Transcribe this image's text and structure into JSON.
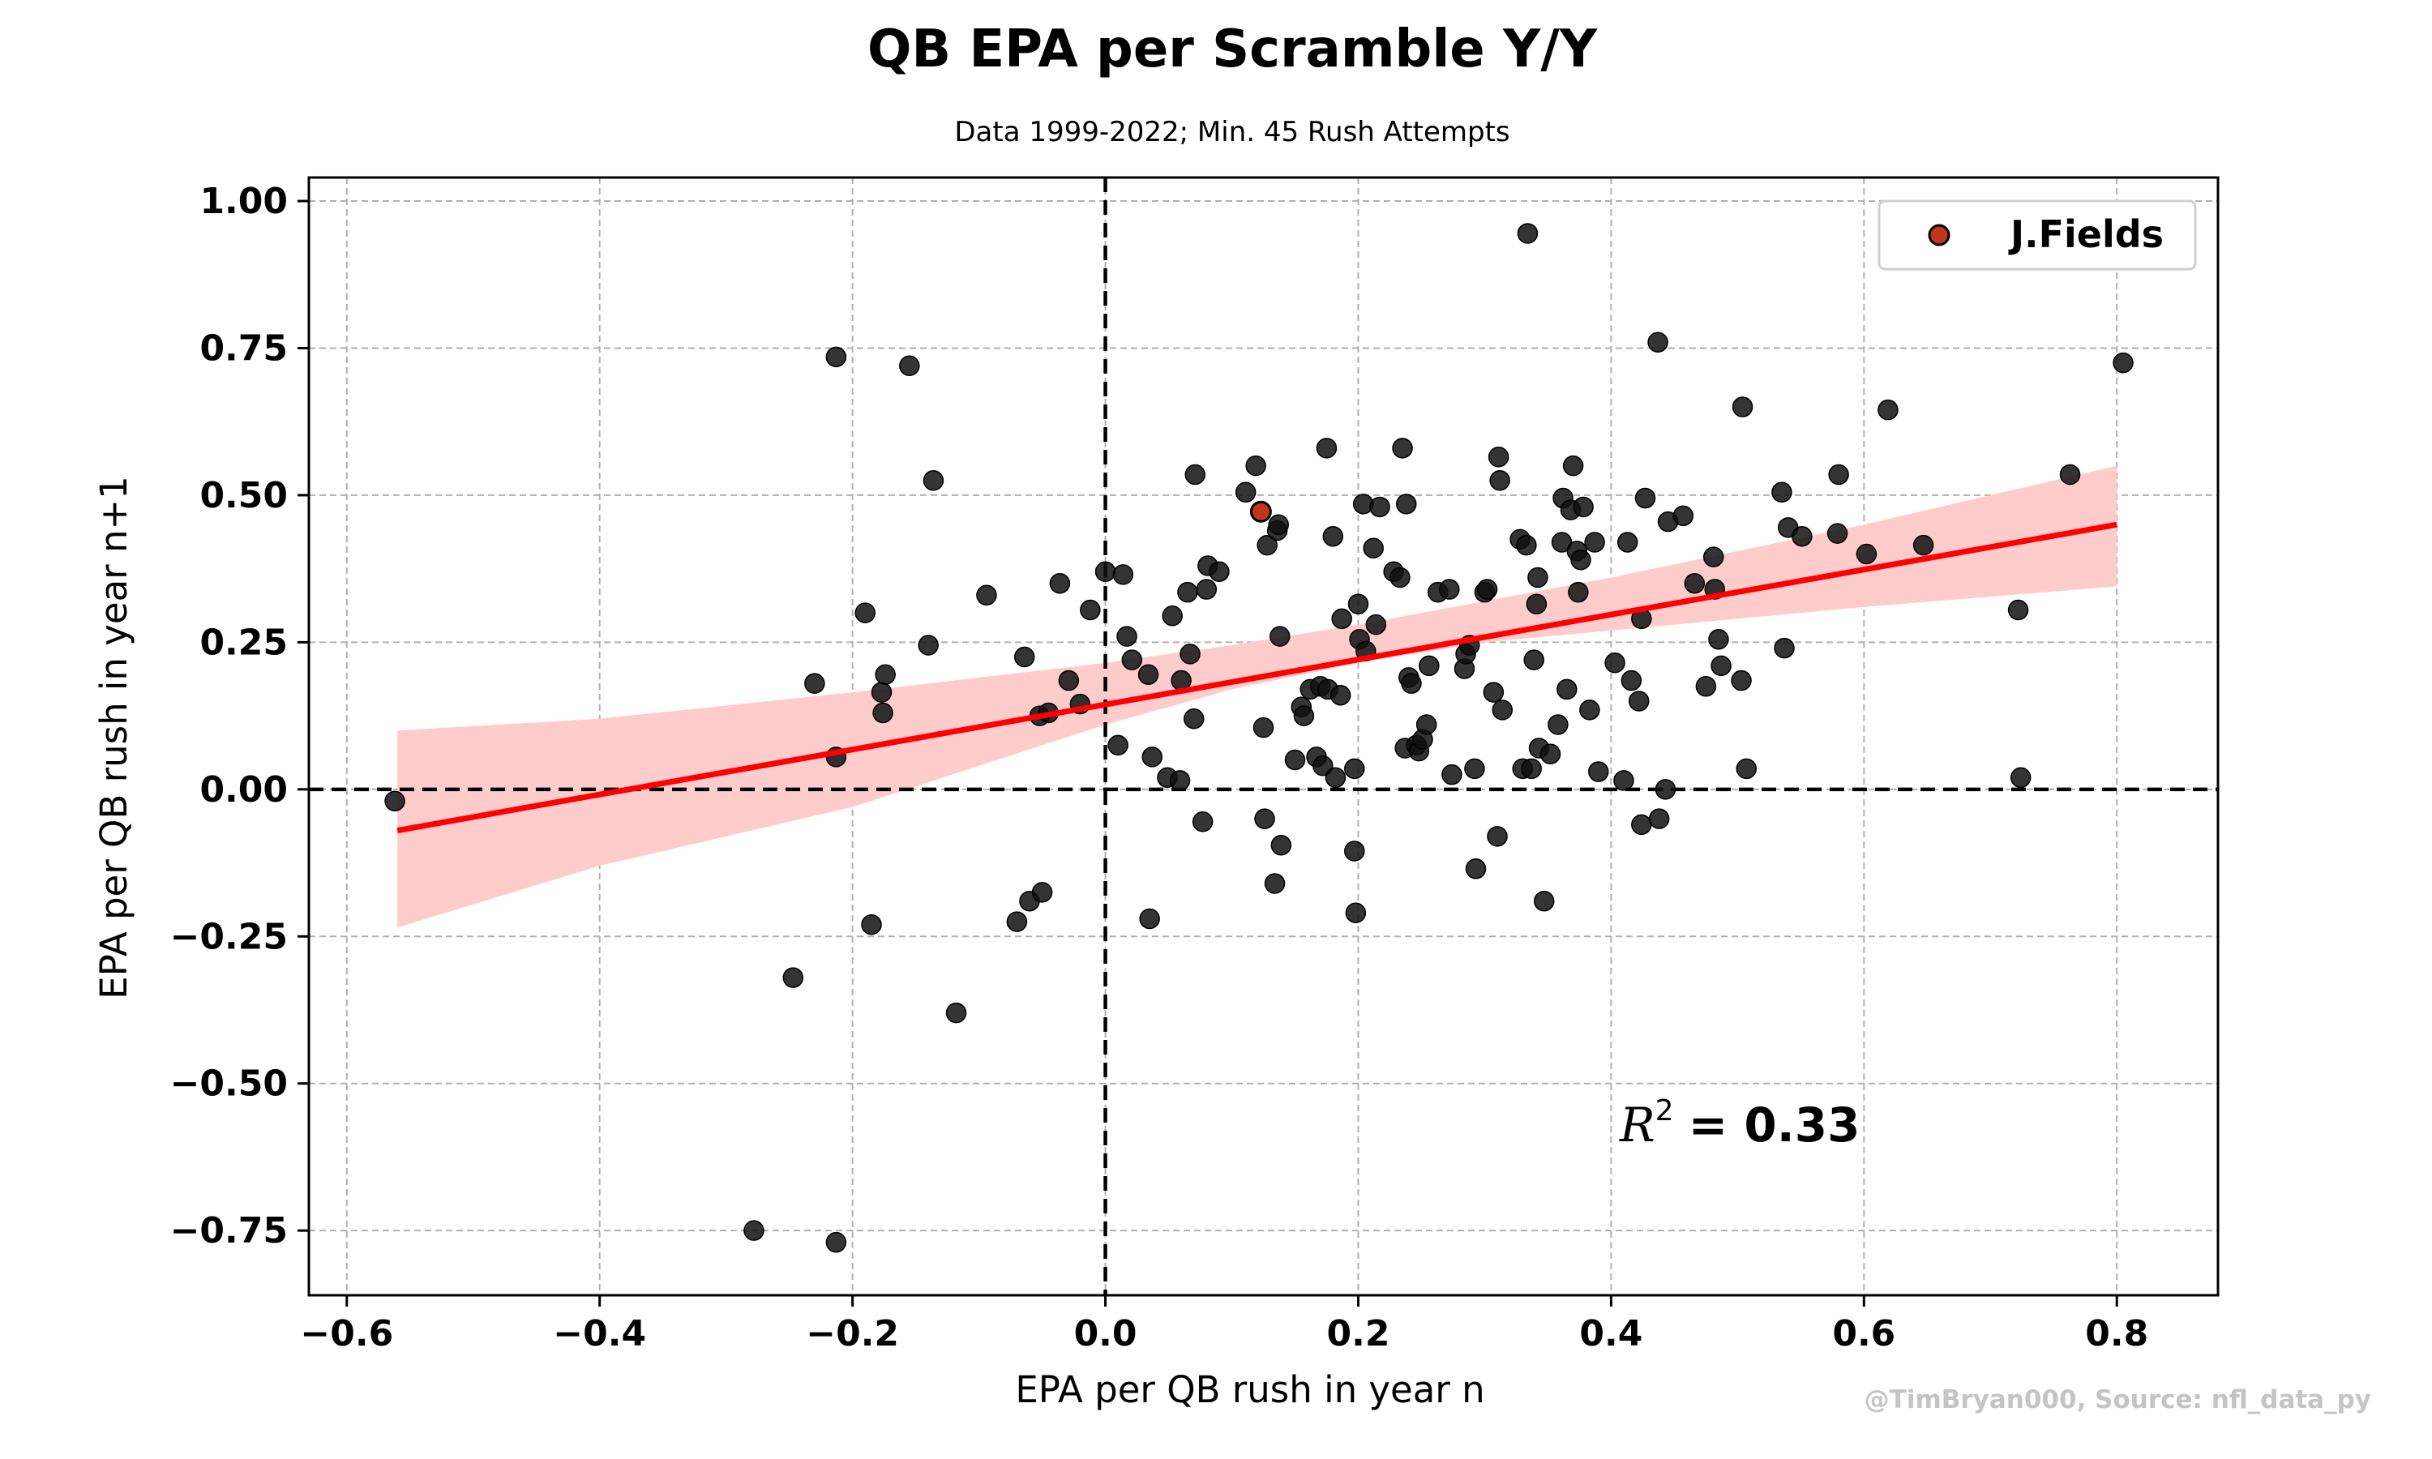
{
  "title": "QB EPA per Scramble Y/Y",
  "subtitle": "Data 1999-2022; Min. 45 Rush Attempts",
  "watermark": "@TimBryan000, Source: nfl_data_py",
  "r2_label": {
    "symbol": "R",
    "exponent": "2",
    "value": "= 0.33"
  },
  "colors": {
    "points": "#111111",
    "highlight": "#c1361a",
    "fit_line": "#ff0000",
    "confidence_band": "#ffcccc"
  },
  "chart_data": {
    "type": "scatter",
    "title": "QB EPA per Scramble Y/Y",
    "subtitle": "Data 1999-2022; Min. 45 Rush Attempts",
    "xlabel": "EPA per QB rush in year n",
    "ylabel": "EPA per QB rush in year n+1",
    "xlim": [
      -0.63,
      0.88
    ],
    "ylim": [
      -0.86,
      1.04
    ],
    "xticks": [
      -0.6,
      -0.4,
      -0.2,
      0.0,
      0.2,
      0.4,
      0.6,
      0.8
    ],
    "xtick_labels": [
      "−0.6",
      "−0.4",
      "−0.2",
      "0.0",
      "0.2",
      "0.4",
      "0.6",
      "0.8"
    ],
    "yticks": [
      -0.75,
      -0.5,
      -0.25,
      0.0,
      0.25,
      0.5,
      0.75,
      1.0
    ],
    "ytick_labels": [
      "−0.75",
      "−0.50",
      "−0.25",
      "0.00",
      "0.25",
      "0.50",
      "0.75",
      "1.00"
    ],
    "grid": true,
    "legend_position": "top-right",
    "legend": [
      {
        "label": "J.Fields"
      }
    ],
    "highlight": {
      "name": "J.Fields",
      "x": 0.123,
      "y": 0.472
    },
    "regression": {
      "line": [
        [
          -0.56,
          -0.07
        ],
        [
          0.8,
          0.45
        ]
      ],
      "band": {
        "x": [
          -0.56,
          -0.4,
          -0.2,
          0.0,
          0.1,
          0.2,
          0.3,
          0.4,
          0.6,
          0.8
        ],
        "lower": [
          -0.235,
          -0.13,
          -0.03,
          0.11,
          0.17,
          0.215,
          0.25,
          0.27,
          0.31,
          0.345
        ],
        "upper": [
          0.1,
          0.12,
          0.165,
          0.215,
          0.245,
          0.28,
          0.32,
          0.36,
          0.45,
          0.55
        ]
      }
    },
    "r_squared": 0.33,
    "points": [
      [
        -0.562,
        -0.02
      ],
      [
        -0.278,
        -0.75
      ],
      [
        -0.247,
        -0.32
      ],
      [
        -0.23,
        0.18
      ],
      [
        -0.213,
        0.735
      ],
      [
        -0.213,
        0.055
      ],
      [
        -0.213,
        -0.77
      ],
      [
        -0.19,
        0.3
      ],
      [
        -0.185,
        -0.23
      ],
      [
        -0.177,
        0.165
      ],
      [
        -0.176,
        0.13
      ],
      [
        -0.174,
        0.195
      ],
      [
        -0.155,
        0.72
      ],
      [
        -0.14,
        0.245
      ],
      [
        -0.136,
        0.525
      ],
      [
        -0.118,
        -0.38
      ],
      [
        -0.094,
        0.33
      ],
      [
        -0.07,
        -0.225
      ],
      [
        -0.064,
        0.225
      ],
      [
        -0.06,
        -0.19
      ],
      [
        -0.052,
        0.125
      ],
      [
        -0.05,
        -0.175
      ],
      [
        -0.045,
        0.13
      ],
      [
        -0.036,
        0.35
      ],
      [
        -0.029,
        0.185
      ],
      [
        -0.02,
        0.145
      ],
      [
        -0.012,
        0.305
      ],
      [
        0.0,
        0.37
      ],
      [
        0.01,
        0.075
      ],
      [
        0.014,
        0.365
      ],
      [
        0.017,
        0.26
      ],
      [
        0.021,
        0.22
      ],
      [
        0.034,
        0.195
      ],
      [
        0.035,
        -0.22
      ],
      [
        0.037,
        0.055
      ],
      [
        0.049,
        0.02
      ],
      [
        0.053,
        0.295
      ],
      [
        0.059,
        0.015
      ],
      [
        0.06,
        0.185
      ],
      [
        0.065,
        0.335
      ],
      [
        0.067,
        0.23
      ],
      [
        0.07,
        0.12
      ],
      [
        0.071,
        0.535
      ],
      [
        0.077,
        -0.055
      ],
      [
        0.08,
        0.34
      ],
      [
        0.081,
        0.38
      ],
      [
        0.09,
        0.37
      ],
      [
        0.111,
        0.505
      ],
      [
        0.119,
        0.55
      ],
      [
        0.125,
        0.105
      ],
      [
        0.126,
        -0.05
      ],
      [
        0.128,
        0.415
      ],
      [
        0.134,
        -0.16
      ],
      [
        0.136,
        0.44
      ],
      [
        0.137,
        0.45
      ],
      [
        0.138,
        0.26
      ],
      [
        0.139,
        -0.095
      ],
      [
        0.15,
        0.05
      ],
      [
        0.155,
        0.14
      ],
      [
        0.157,
        0.125
      ],
      [
        0.162,
        0.17
      ],
      [
        0.167,
        0.055
      ],
      [
        0.17,
        0.175
      ],
      [
        0.172,
        0.04
      ],
      [
        0.175,
        0.58
      ],
      [
        0.176,
        0.17
      ],
      [
        0.18,
        0.43
      ],
      [
        0.182,
        0.02
      ],
      [
        0.186,
        0.16
      ],
      [
        0.187,
        0.29
      ],
      [
        0.197,
        0.035
      ],
      [
        0.197,
        -0.105
      ],
      [
        0.198,
        -0.21
      ],
      [
        0.2,
        0.315
      ],
      [
        0.201,
        0.255
      ],
      [
        0.204,
        0.485
      ],
      [
        0.206,
        0.235
      ],
      [
        0.212,
        0.41
      ],
      [
        0.214,
        0.28
      ],
      [
        0.217,
        0.48
      ],
      [
        0.228,
        0.37
      ],
      [
        0.233,
        0.36
      ],
      [
        0.235,
        0.58
      ],
      [
        0.237,
        0.07
      ],
      [
        0.238,
        0.485
      ],
      [
        0.24,
        0.19
      ],
      [
        0.242,
        0.18
      ],
      [
        0.246,
        0.075
      ],
      [
        0.248,
        0.065
      ],
      [
        0.251,
        0.085
      ],
      [
        0.254,
        0.11
      ],
      [
        0.256,
        0.21
      ],
      [
        0.263,
        0.335
      ],
      [
        0.272,
        0.34
      ],
      [
        0.274,
        0.025
      ],
      [
        0.284,
        0.205
      ],
      [
        0.285,
        0.23
      ],
      [
        0.288,
        0.245
      ],
      [
        0.292,
        0.035
      ],
      [
        0.293,
        -0.135
      ],
      [
        0.3,
        0.335
      ],
      [
        0.302,
        0.34
      ],
      [
        0.307,
        0.165
      ],
      [
        0.31,
        -0.08
      ],
      [
        0.311,
        0.565
      ],
      [
        0.312,
        0.525
      ],
      [
        0.314,
        0.135
      ],
      [
        0.328,
        0.425
      ],
      [
        0.33,
        0.035
      ],
      [
        0.333,
        0.415
      ],
      [
        0.334,
        0.945
      ],
      [
        0.337,
        0.035
      ],
      [
        0.339,
        0.22
      ],
      [
        0.341,
        0.315
      ],
      [
        0.342,
        0.36
      ],
      [
        0.343,
        0.07
      ],
      [
        0.347,
        -0.19
      ],
      [
        0.352,
        0.06
      ],
      [
        0.358,
        0.11
      ],
      [
        0.361,
        0.42
      ],
      [
        0.362,
        0.495
      ],
      [
        0.365,
        0.17
      ],
      [
        0.368,
        0.475
      ],
      [
        0.37,
        0.55
      ],
      [
        0.373,
        0.405
      ],
      [
        0.374,
        0.335
      ],
      [
        0.376,
        0.39
      ],
      [
        0.378,
        0.48
      ],
      [
        0.383,
        0.135
      ],
      [
        0.387,
        0.42
      ],
      [
        0.39,
        0.03
      ],
      [
        0.403,
        0.215
      ],
      [
        0.41,
        0.015
      ],
      [
        0.413,
        0.42
      ],
      [
        0.416,
        0.185
      ],
      [
        0.422,
        0.15
      ],
      [
        0.424,
        -0.06
      ],
      [
        0.424,
        0.29
      ],
      [
        0.427,
        0.495
      ],
      [
        0.437,
        0.76
      ],
      [
        0.438,
        -0.05
      ],
      [
        0.443,
        0.0
      ],
      [
        0.445,
        0.455
      ],
      [
        0.457,
        0.465
      ],
      [
        0.466,
        0.35
      ],
      [
        0.475,
        0.175
      ],
      [
        0.481,
        0.395
      ],
      [
        0.482,
        0.34
      ],
      [
        0.485,
        0.255
      ],
      [
        0.487,
        0.21
      ],
      [
        0.503,
        0.185
      ],
      [
        0.504,
        0.65
      ],
      [
        0.507,
        0.035
      ],
      [
        0.535,
        0.505
      ],
      [
        0.537,
        0.24
      ],
      [
        0.54,
        0.445
      ],
      [
        0.551,
        0.43
      ],
      [
        0.579,
        0.435
      ],
      [
        0.58,
        0.535
      ],
      [
        0.602,
        0.4
      ],
      [
        0.619,
        0.645
      ],
      [
        0.647,
        0.415
      ],
      [
        0.722,
        0.305
      ],
      [
        0.724,
        0.02
      ],
      [
        0.763,
        0.535
      ],
      [
        0.805,
        0.725
      ]
    ]
  }
}
